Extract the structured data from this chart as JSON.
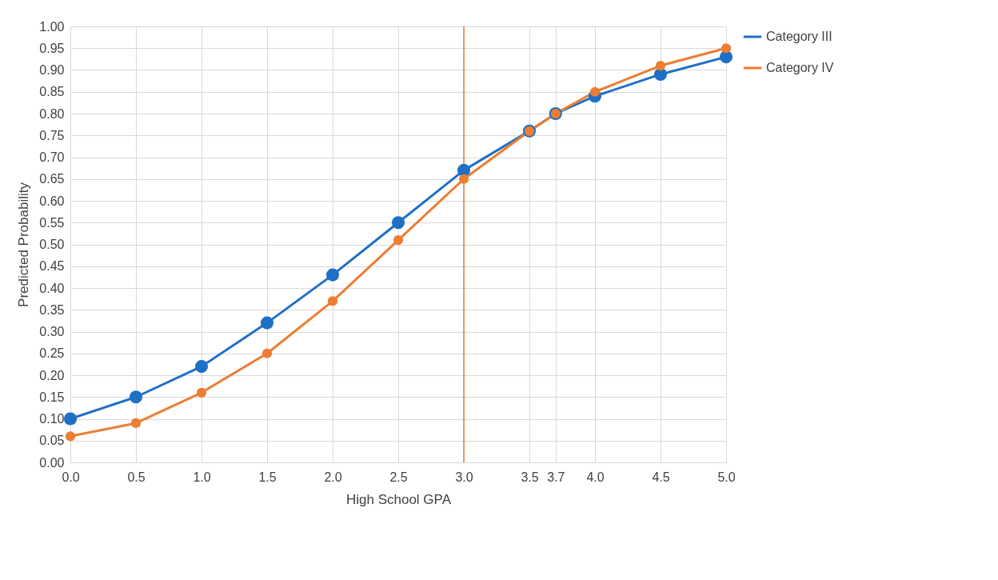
{
  "chart_data": {
    "type": "line",
    "xlabel": "High School GPA",
    "ylabel": "Predicted Probability",
    "x": [
      0.0,
      0.5,
      1.0,
      1.5,
      2.0,
      2.5,
      3.0,
      3.5,
      3.7,
      4.0,
      4.5,
      5.0
    ],
    "series": [
      {
        "name": "Category III",
        "color": "#1f6fc5",
        "values": [
          0.1,
          0.15,
          0.22,
          0.32,
          0.43,
          0.55,
          0.67,
          0.76,
          0.8,
          0.84,
          0.89,
          0.93
        ]
      },
      {
        "name": "Category IV",
        "color": "#ed7d31",
        "values": [
          0.06,
          0.09,
          0.16,
          0.25,
          0.37,
          0.51,
          0.65,
          0.76,
          0.8,
          0.85,
          0.91,
          0.95
        ]
      }
    ],
    "xlim": [
      0,
      5
    ],
    "ylim": [
      0,
      1
    ],
    "xticks": [
      {
        "value": 0,
        "label": "0.0"
      },
      {
        "value": 0.5,
        "label": "0.5"
      },
      {
        "value": 1,
        "label": "1.0"
      },
      {
        "value": 1.5,
        "label": "1.5"
      },
      {
        "value": 2,
        "label": "2.0"
      },
      {
        "value": 2.5,
        "label": "2.5"
      },
      {
        "value": 3,
        "label": "3.0"
      },
      {
        "value": 3.5,
        "label": "3.5"
      },
      {
        "value": 3.7,
        "label": "3.7"
      },
      {
        "value": 4,
        "label": "4.0"
      },
      {
        "value": 4.5,
        "label": "4.5"
      },
      {
        "value": 5,
        "label": "5.0"
      }
    ],
    "yticks": [
      {
        "value": 0,
        "label": "0.00"
      },
      {
        "value": 0.05,
        "label": "0.05"
      },
      {
        "value": 0.1,
        "label": "0.10"
      },
      {
        "value": 0.15,
        "label": "0.15"
      },
      {
        "value": 0.2,
        "label": "0.20"
      },
      {
        "value": 0.25,
        "label": "0.25"
      },
      {
        "value": 0.3,
        "label": "0.30"
      },
      {
        "value": 0.35,
        "label": "0.35"
      },
      {
        "value": 0.4,
        "label": "0.40"
      },
      {
        "value": 0.45,
        "label": "0.45"
      },
      {
        "value": 0.5,
        "label": "0.50"
      },
      {
        "value": 0.55,
        "label": "0.55"
      },
      {
        "value": 0.6,
        "label": "0.60"
      },
      {
        "value": 0.65,
        "label": "0.65"
      },
      {
        "value": 0.7,
        "label": "0.70"
      },
      {
        "value": 0.75,
        "label": "0.75"
      },
      {
        "value": 0.8,
        "label": "0.80"
      },
      {
        "value": 0.85,
        "label": "0.85"
      },
      {
        "value": 0.9,
        "label": "0.90"
      },
      {
        "value": 0.95,
        "label": "0.95"
      },
      {
        "value": 1,
        "label": "1.00"
      }
    ],
    "ref_lines": [
      {
        "axis": "x",
        "value": 3,
        "color": "#ed7d31"
      }
    ],
    "grid": true,
    "legend": "right",
    "marker": "circle",
    "line_style": "solid"
  }
}
